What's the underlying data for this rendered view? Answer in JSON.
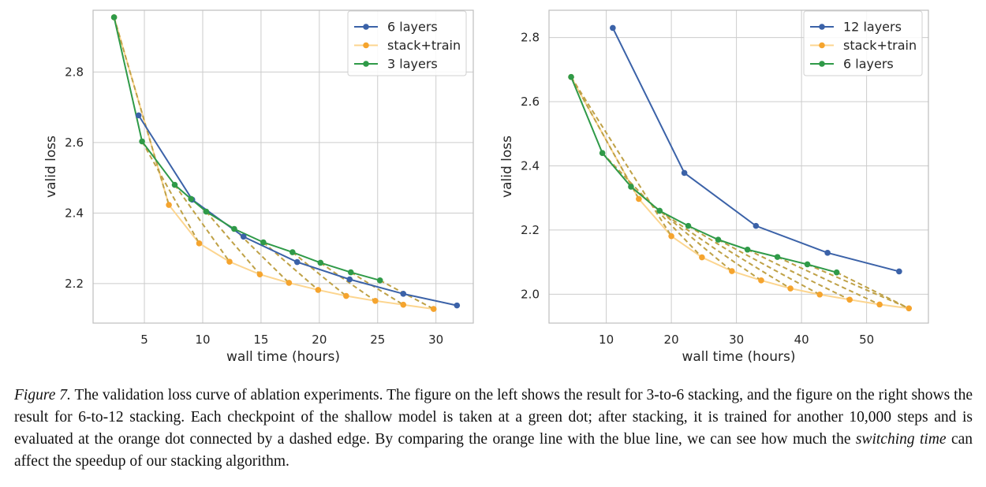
{
  "caption": {
    "fig_label": "Figure 7.",
    "part1": " The validation loss curve of ablation experiments. The figure on the left shows the result for 3-to-6 stacking, and the figure on the right shows the result for 6-to-12 stacking. Each checkpoint of the shallow model is taken at a green dot; after stacking, it is trained for another 10,000 steps and is evaluated at the orange dot connected by a dashed edge. By comparing the orange line with the blue line, we can see how much the ",
    "emph": "switching time",
    "part2": " can affect the speedup of our stacking algorithm."
  },
  "colors": {
    "blue": "#3b62a8",
    "orange": "#f5a42e",
    "orange_line": "#fcd58f",
    "green": "#2f9a48",
    "dash": "#bfa146",
    "grid": "#cccccc",
    "frame": "#bdbdbd"
  },
  "chart_data": [
    {
      "type": "line",
      "xlabel": "wall time (hours)",
      "ylabel": "valid loss",
      "xlim": [
        0.6,
        33.2
      ],
      "ylim": [
        2.088,
        2.975
      ],
      "xticks": [
        5,
        10,
        15,
        20,
        25,
        30
      ],
      "yticks": [
        2.2,
        2.4,
        2.6,
        2.8
      ],
      "ytick_labels": [
        "2.2",
        "2.4",
        "2.6",
        "2.8"
      ],
      "grid": true,
      "legend_position": "top-right",
      "series": [
        {
          "name": "6 layers",
          "color": "blue",
          "x": [
            4.5,
            9.1,
            13.5,
            18.1,
            22.6,
            27.2,
            31.8
          ],
          "y": [
            2.677,
            2.438,
            2.333,
            2.261,
            2.212,
            2.171,
            2.138
          ]
        },
        {
          "name": "stack+train",
          "color": "orange",
          "x": [
            2.4,
            7.1,
            9.7,
            12.3,
            14.9,
            17.4,
            19.9,
            22.3,
            24.8,
            27.2,
            29.8
          ],
          "y": [
            2.955,
            2.423,
            2.314,
            2.262,
            2.226,
            2.202,
            2.182,
            2.165,
            2.151,
            2.14,
            2.128
          ]
        },
        {
          "name": "3 layers",
          "color": "green",
          "x": [
            2.4,
            4.8,
            7.6,
            9.0,
            10.3,
            12.7,
            15.2,
            17.7,
            20.1,
            22.7,
            25.2
          ],
          "y": [
            2.955,
            2.603,
            2.48,
            2.44,
            2.404,
            2.355,
            2.317,
            2.289,
            2.259,
            2.232,
            2.209
          ]
        }
      ],
      "dashed_edges": [
        [
          0,
          1
        ],
        [
          1,
          2
        ],
        [
          2,
          3
        ],
        [
          4,
          4
        ],
        [
          5,
          5
        ],
        [
          6,
          6
        ],
        [
          7,
          7
        ],
        [
          8,
          8
        ],
        [
          9,
          9
        ],
        [
          10,
          10
        ]
      ]
    },
    {
      "type": "line",
      "xlabel": "wall time (hours)",
      "ylabel": "valid loss",
      "xlim": [
        1.2,
        59.5
      ],
      "ylim": [
        1.91,
        2.885
      ],
      "xticks": [
        10,
        20,
        30,
        40,
        50
      ],
      "yticks": [
        2.0,
        2.2,
        2.4,
        2.6,
        2.8
      ],
      "ytick_labels": [
        "2.0",
        "2.2",
        "2.4",
        "2.6",
        "2.8"
      ],
      "grid": true,
      "legend_position": "top-right",
      "series": [
        {
          "name": "12 layers",
          "color": "blue",
          "x": [
            11.0,
            22.0,
            33.0,
            44.0,
            55.0
          ],
          "y": [
            2.83,
            2.378,
            2.213,
            2.129,
            2.071
          ]
        },
        {
          "name": "stack+train",
          "color": "orange",
          "x": [
            4.6,
            15.0,
            20.0,
            24.7,
            29.3,
            33.8,
            38.3,
            42.8,
            47.4,
            52.0,
            56.5
          ],
          "y": [
            2.677,
            2.297,
            2.181,
            2.115,
            2.072,
            2.043,
            2.018,
            1.999,
            1.983,
            1.968,
            1.956
          ]
        },
        {
          "name": "6 layers",
          "color": "green",
          "x": [
            4.6,
            9.4,
            13.8,
            18.2,
            22.6,
            27.2,
            31.7,
            36.3,
            40.9,
            45.4
          ],
          "y": [
            2.677,
            2.44,
            2.335,
            2.26,
            2.213,
            2.17,
            2.139,
            2.116,
            2.093,
            2.068
          ]
        }
      ],
      "dashed_edges": [
        [
          0,
          1
        ],
        [
          0,
          2
        ],
        [
          1,
          3
        ],
        [
          2,
          4
        ],
        [
          3,
          5
        ],
        [
          4,
          6
        ],
        [
          5,
          7
        ],
        [
          6,
          8
        ],
        [
          7,
          9
        ],
        [
          8,
          10
        ],
        [
          9,
          10
        ]
      ]
    }
  ]
}
